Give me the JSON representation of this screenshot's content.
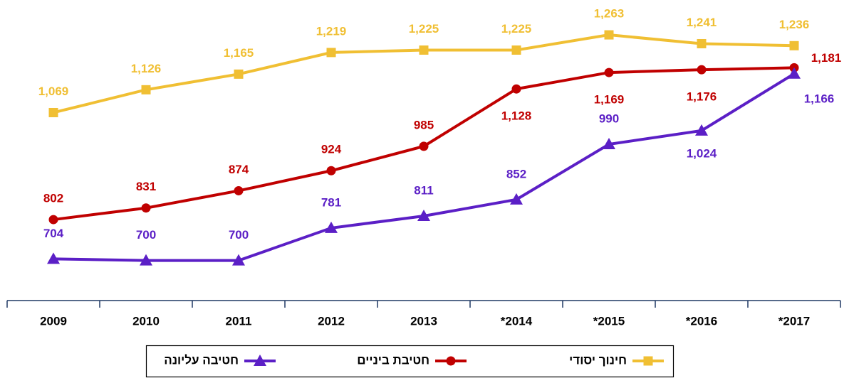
{
  "chart_data": {
    "type": "line",
    "categories": [
      "2009",
      "2010",
      "2011",
      "2012",
      "2013",
      "*2014",
      "*2015",
      "*2016",
      "*2017"
    ],
    "series": [
      {
        "name": "חינוך יסודי",
        "color": "#f0bf33",
        "marker": "square",
        "values": [
          1069,
          1126,
          1165,
          1219,
          1225,
          1225,
          1263,
          1241,
          1236
        ],
        "value_labels": [
          "1,069",
          "1,126",
          "1,165",
          "1,219",
          "1,225",
          "1,225",
          "1,263",
          "1,241",
          "1,236"
        ]
      },
      {
        "name": "חטיבת ביניים",
        "color": "#c00000",
        "marker": "circle",
        "values": [
          802,
          831,
          874,
          924,
          985,
          1128,
          1169,
          1176,
          1181
        ],
        "value_labels": [
          "802",
          "831",
          "874",
          "924",
          "985",
          "1,128",
          "1,169",
          "1,176",
          "1,181"
        ]
      },
      {
        "name": "חטיבה עליונה",
        "color": "#5b1fc6",
        "marker": "triangle",
        "values": [
          704,
          700,
          700,
          781,
          811,
          852,
          990,
          1024,
          1166
        ],
        "value_labels": [
          "704",
          "700",
          "700",
          "781",
          "811",
          "852",
          "990",
          "1,024",
          "1,166"
        ]
      }
    ],
    "ylim": [
      600,
      1350
    ]
  }
}
